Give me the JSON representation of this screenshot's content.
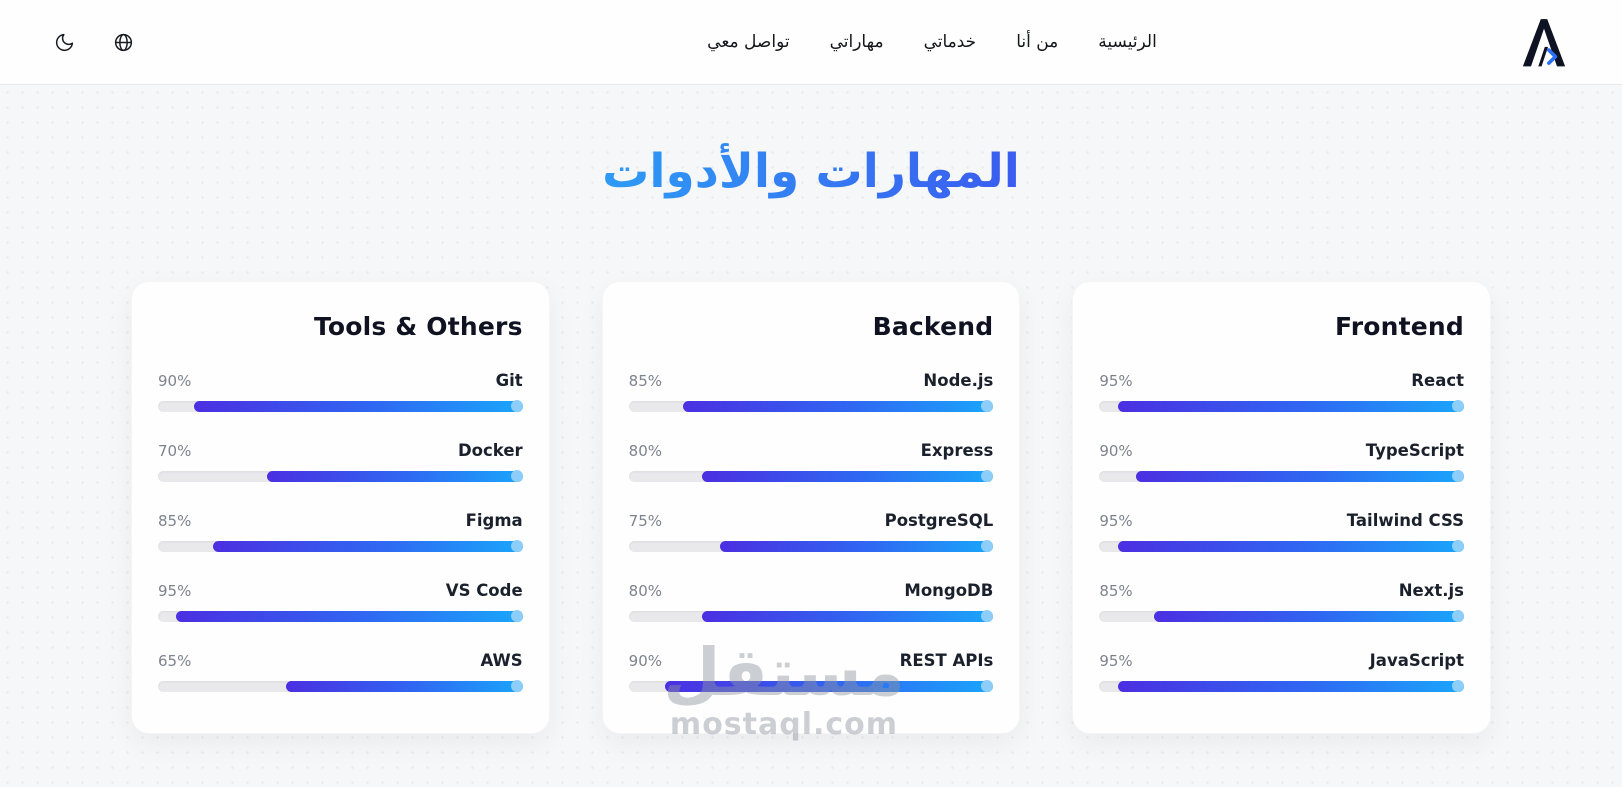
{
  "header": {
    "brand": {
      "icon": "a-code-logo"
    },
    "nav": [
      {
        "id": "home",
        "label": "الرئيسية"
      },
      {
        "id": "about",
        "label": "من أنا"
      },
      {
        "id": "services",
        "label": "خدماتي"
      },
      {
        "id": "skills",
        "label": "مهاراتي"
      },
      {
        "id": "contact",
        "label": "تواصل معي"
      }
    ],
    "controls": [
      {
        "id": "language",
        "icon": "globe-icon"
      },
      {
        "id": "theme",
        "icon": "moon-icon"
      }
    ]
  },
  "section": {
    "title": "المهارات والأدوات"
  },
  "cards": [
    {
      "id": "frontend",
      "title": "Frontend",
      "skills": [
        {
          "name": "React",
          "percent": 95
        },
        {
          "name": "TypeScript",
          "percent": 90
        },
        {
          "name": "Tailwind CSS",
          "percent": 95
        },
        {
          "name": "Next.js",
          "percent": 85
        },
        {
          "name": "JavaScript",
          "percent": 95
        }
      ]
    },
    {
      "id": "backend",
      "title": "Backend",
      "skills": [
        {
          "name": "Node.js",
          "percent": 85
        },
        {
          "name": "Express",
          "percent": 80
        },
        {
          "name": "PostgreSQL",
          "percent": 75
        },
        {
          "name": "MongoDB",
          "percent": 80
        },
        {
          "name": "REST APIs",
          "percent": 90
        }
      ]
    },
    {
      "id": "tools",
      "title": "Tools & Others",
      "skills": [
        {
          "name": "Git",
          "percent": 90
        },
        {
          "name": "Docker",
          "percent": 70
        },
        {
          "name": "Figma",
          "percent": 85
        },
        {
          "name": "VS Code",
          "percent": 95
        },
        {
          "name": "AWS",
          "percent": 65
        }
      ]
    }
  ],
  "watermark": {
    "name": "مستقل",
    "domain": "mostaql.com"
  },
  "colors": {
    "title_gradient_right": "#3b5cf0",
    "title_gradient_left": "#2e9bf5",
    "bar_gradient_start": "#4b2fe1",
    "bar_gradient_mid": "#2f68f2",
    "bar_gradient_end": "#1aa6fb",
    "bar_cap": "#8ccdf9",
    "track": "#e9e9ec"
  }
}
